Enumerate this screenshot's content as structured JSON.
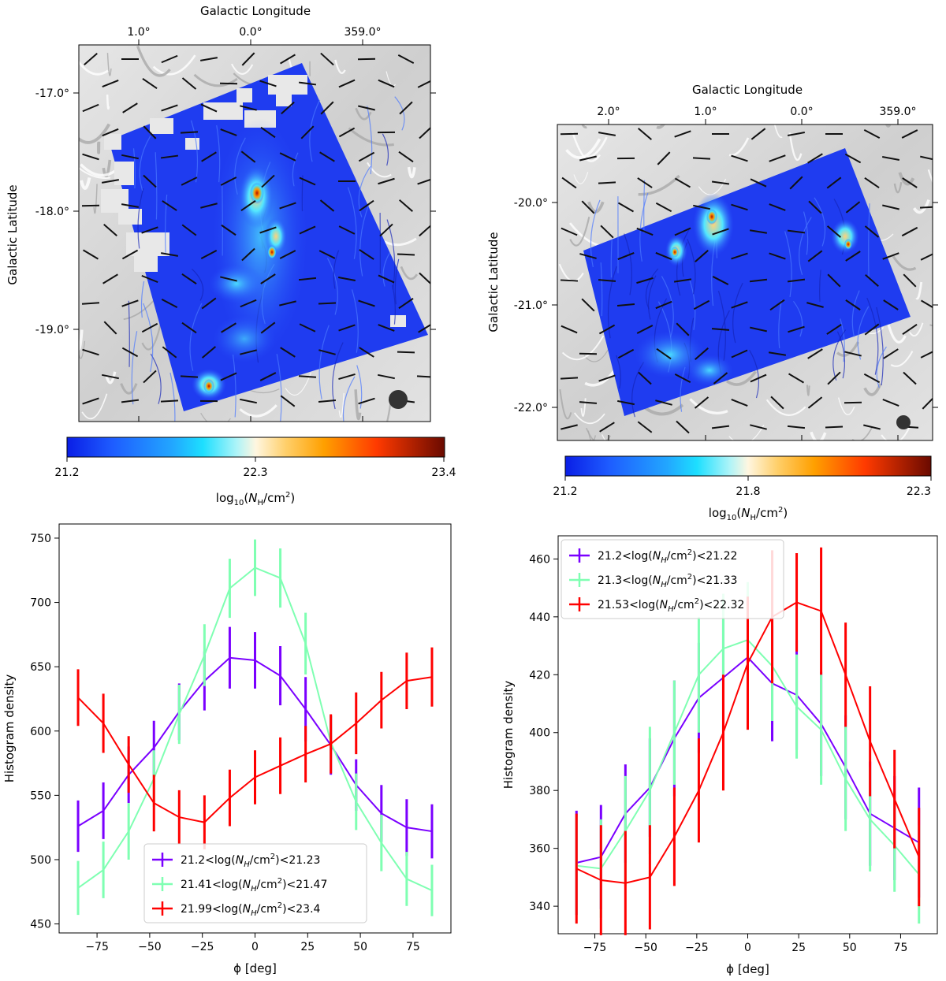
{
  "maps": [
    {
      "top_label": "Galactic Longitude",
      "left_label": "Galactic Latitude",
      "top_ticks": [
        "1.0°",
        "0.0°",
        "359.0°"
      ],
      "left_ticks": [
        "-17.0°",
        "-18.0°",
        "-19.0°"
      ],
      "colorbar": {
        "ticks": [
          "21.2",
          "22.3",
          "23.4"
        ],
        "label": "log10(NH/cm2)",
        "range": [
          21.2,
          23.4
        ]
      }
    },
    {
      "top_label": "Galactic Longitude",
      "left_label": "Galactic Latitude",
      "top_ticks": [
        "2.0°",
        "1.0°",
        "0.0°",
        "359.0°"
      ],
      "left_ticks": [
        "-20.0°",
        "-21.0°",
        "-22.0°"
      ],
      "colorbar": {
        "ticks": [
          "21.2",
          "21.8",
          "22.3"
        ],
        "label": "log10(NH/cm2)",
        "range": [
          21.2,
          22.3
        ]
      }
    }
  ],
  "chart_data": [
    {
      "type": "line",
      "xlabel": "ϕ [deg]",
      "ylabel": "Histogram density",
      "xlim": [
        -93,
        93
      ],
      "ylim": [
        443,
        761
      ],
      "xticks": [
        -75,
        -50,
        -25,
        0,
        25,
        50,
        75
      ],
      "yticks": [
        450,
        500,
        550,
        600,
        650,
        700,
        750
      ],
      "legend_position": "lower center",
      "x": [
        -84,
        -72,
        -60,
        -48,
        -36,
        -24,
        -12,
        0,
        12,
        24,
        36,
        48,
        60,
        72,
        84
      ],
      "series": [
        {
          "name": "21.2<log(N_H/cm²)<21.23",
          "legend_label": {
            "pre": "21.2<log(",
            "post": ")<21.23"
          },
          "color": "#7a00ff",
          "values": [
            526,
            538,
            566,
            587,
            615,
            639,
            657,
            655,
            643,
            617,
            589,
            558,
            536,
            525,
            522
          ],
          "errors": [
            20,
            22,
            22,
            21,
            22,
            23,
            24,
            22,
            23,
            25,
            23,
            20,
            22,
            22,
            21
          ]
        },
        {
          "name": "21.41<log(N_H/cm²)<21.47",
          "legend_label": {
            "pre": "21.41<log(",
            "post": ")<21.47"
          },
          "color": "#7fffb2",
          "values": [
            478,
            492,
            522,
            563,
            613,
            659,
            711,
            727,
            719,
            668,
            591,
            545,
            513,
            485,
            476
          ],
          "errors": [
            21,
            22,
            22,
            22,
            23,
            24,
            23,
            22,
            23,
            24,
            21,
            22,
            22,
            21,
            20
          ]
        },
        {
          "name": "21.99<log(N_H/cm²)<23.4",
          "legend_label": {
            "pre": "21.99<log(",
            "post": ")<23.4"
          },
          "color": "#ff0000",
          "values": [
            626,
            606,
            574,
            544,
            533,
            529,
            548,
            564,
            573,
            582,
            590,
            606,
            624,
            639,
            642
          ],
          "errors": [
            22,
            23,
            22,
            22,
            21,
            21,
            22,
            21,
            22,
            22,
            23,
            24,
            22,
            22,
            23
          ]
        }
      ]
    },
    {
      "type": "line",
      "xlabel": "ϕ [deg]",
      "ylabel": "Histogram density",
      "xlim": [
        -93,
        93
      ],
      "ylim": [
        330.5,
        468
      ],
      "xticks": [
        -75,
        -50,
        -25,
        0,
        25,
        50,
        75
      ],
      "yticks": [
        340,
        360,
        380,
        400,
        420,
        440,
        460
      ],
      "legend_position": "upper left",
      "x": [
        -84,
        -72,
        -60,
        -48,
        -36,
        -24,
        -12,
        0,
        12,
        24,
        36,
        48,
        60,
        72,
        84
      ],
      "series": [
        {
          "name": "21.2<log(N_H/cm²)<21.22",
          "legend_label": {
            "pre": "21.2<log(",
            "post": ")<21.22"
          },
          "color": "#7a00ff",
          "values": [
            355,
            357,
            372,
            381,
            398,
            412,
            419,
            426,
            417,
            413,
            403,
            388,
            372,
            367,
            362
          ],
          "errors": [
            18,
            18,
            17,
            17,
            20,
            19,
            20,
            19,
            20,
            19,
            18,
            18,
            18,
            18,
            19
          ]
        },
        {
          "name": "21.3<log(N_H/cm²)<21.33",
          "legend_label": {
            "pre": "21.3<log(",
            "post": ")<21.33"
          },
          "color": "#7fffb2",
          "values": [
            354,
            353,
            366,
            380,
            400,
            420,
            429,
            432,
            423,
            409,
            401,
            384,
            370,
            361,
            351
          ],
          "errors": [
            17,
            17,
            19,
            22,
            18,
            20,
            19,
            20,
            19,
            18,
            19,
            18,
            18,
            16,
            17
          ]
        },
        {
          "name": "21.53<log(N_H/cm²)<22.32",
          "legend_label": {
            "pre": "21.53<log(",
            "post": ")<22.32"
          },
          "color": "#ff0000",
          "values": [
            353,
            349,
            348,
            350,
            364,
            380,
            400,
            424,
            440,
            445,
            442,
            420,
            397,
            377,
            357
          ],
          "errors": [
            19,
            19,
            18,
            18,
            17,
            18,
            20,
            23,
            23,
            17,
            22,
            18,
            19,
            17,
            17
          ]
        }
      ]
    }
  ]
}
